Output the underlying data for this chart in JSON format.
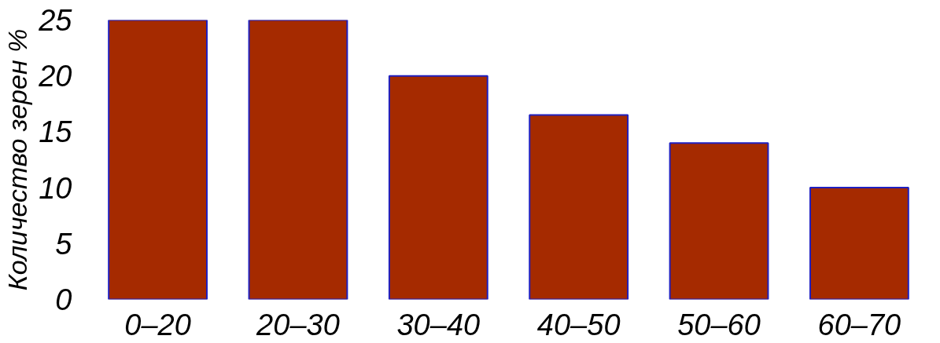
{
  "chart_data": {
    "type": "bar",
    "ylabel": "Количество зерен %",
    "categories": [
      "0–20",
      "20–30",
      "30–40",
      "40–50",
      "50–60",
      "60–70"
    ],
    "values": [
      25,
      25,
      20,
      16.5,
      14,
      10
    ],
    "color": "#a52a00",
    "ylim": [
      0,
      25
    ],
    "yticks": [
      0,
      5,
      10,
      15,
      20,
      25
    ],
    "grid": false
  }
}
